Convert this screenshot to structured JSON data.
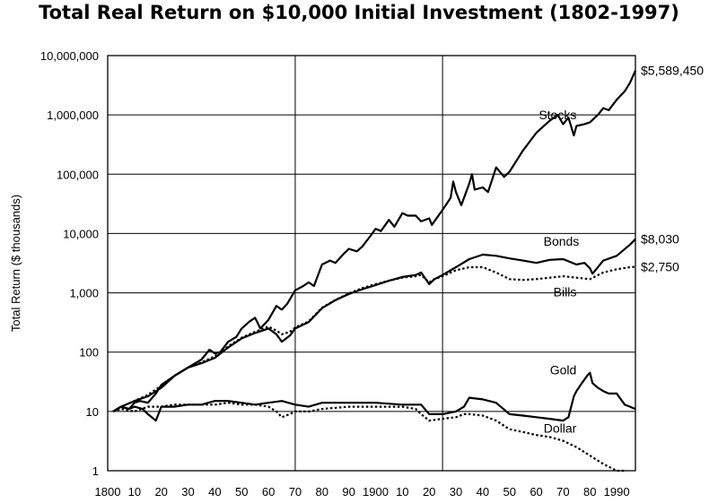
{
  "chart_data": {
    "type": "line",
    "title": "Total Real Return on $10,000 Initial Investment (1802-1997)",
    "ylabel": "Total Return ($ thousands)",
    "yscale": "log",
    "ylim": [
      1,
      10000000
    ],
    "xlim": [
      1800,
      1997
    ],
    "y_ticks": [
      {
        "v": 1,
        "label": "1"
      },
      {
        "v": 10,
        "label": "10"
      },
      {
        "v": 100,
        "label": "100"
      },
      {
        "v": 1000,
        "label": "1,000"
      },
      {
        "v": 10000,
        "label": "10,000"
      },
      {
        "v": 100000,
        "label": "100,000"
      },
      {
        "v": 1000000,
        "label": "1,000,000"
      },
      {
        "v": 10000000,
        "label": "10,000,000"
      }
    ],
    "x_ticks": [
      {
        "v": 1800,
        "label": "1800"
      },
      {
        "v": 1810,
        "label": "10"
      },
      {
        "v": 1820,
        "label": "20"
      },
      {
        "v": 1830,
        "label": "30"
      },
      {
        "v": 1840,
        "label": "40"
      },
      {
        "v": 1850,
        "label": "50"
      },
      {
        "v": 1860,
        "label": "60"
      },
      {
        "v": 1870,
        "label": "70"
      },
      {
        "v": 1880,
        "label": "80"
      },
      {
        "v": 1890,
        "label": "90"
      },
      {
        "v": 1900,
        "label": "1900"
      },
      {
        "v": 1910,
        "label": "10"
      },
      {
        "v": 1920,
        "label": "20"
      },
      {
        "v": 1930,
        "label": "30"
      },
      {
        "v": 1940,
        "label": "40"
      },
      {
        "v": 1950,
        "label": "50"
      },
      {
        "v": 1960,
        "label": "60"
      },
      {
        "v": 1970,
        "label": "70"
      },
      {
        "v": 1980,
        "label": "80"
      },
      {
        "v": 1990,
        "label": "1990"
      }
    ],
    "vgrid": [
      1800,
      1870,
      1925
    ],
    "hgrid": [
      10,
      100,
      1000,
      10000,
      100000,
      1000000,
      10000000
    ],
    "series": [
      {
        "name": "Stocks",
        "style": "solid",
        "end_label": "$5,589,450",
        "label_at": [
          1975,
          1000000
        ],
        "x": [
          1802,
          1805,
          1808,
          1810,
          1812,
          1815,
          1818,
          1820,
          1825,
          1830,
          1835,
          1838,
          1840,
          1842,
          1845,
          1848,
          1850,
          1853,
          1855,
          1857,
          1860,
          1863,
          1865,
          1867,
          1870,
          1873,
          1875,
          1877,
          1880,
          1883,
          1885,
          1888,
          1890,
          1893,
          1895,
          1898,
          1900,
          1902,
          1905,
          1907,
          1910,
          1912,
          1915,
          1917,
          1920,
          1921,
          1925,
          1928,
          1929,
          1930,
          1932,
          1935,
          1936,
          1937,
          1940,
          1942,
          1945,
          1948,
          1950,
          1955,
          1960,
          1965,
          1968,
          1970,
          1972,
          1974,
          1975,
          1978,
          1980,
          1983,
          1985,
          1987,
          1990,
          1993,
          1995,
          1997
        ],
        "y": [
          10,
          12,
          11,
          14,
          15,
          14,
          20,
          28,
          40,
          55,
          75,
          110,
          95,
          100,
          150,
          180,
          250,
          330,
          380,
          250,
          350,
          600,
          520,
          650,
          1100,
          1300,
          1500,
          1300,
          3000,
          3500,
          3200,
          4500,
          5500,
          5000,
          6000,
          9000,
          12000,
          11000,
          17000,
          13000,
          22000,
          20000,
          20000,
          16000,
          18000,
          14000,
          25000,
          40000,
          75000,
          50000,
          30000,
          70000,
          100000,
          55000,
          60000,
          50000,
          130000,
          90000,
          110000,
          250000,
          500000,
          800000,
          1000000,
          700000,
          900000,
          450000,
          650000,
          700000,
          750000,
          1000000,
          1300000,
          1200000,
          1800000,
          2500000,
          3500000,
          5589450
        ]
      },
      {
        "name": "Bonds",
        "style": "solid",
        "end_label": "$8,030",
        "label_at": [
          1976,
          7400
        ],
        "x": [
          1802,
          1805,
          1810,
          1815,
          1820,
          1825,
          1830,
          1835,
          1840,
          1845,
          1850,
          1855,
          1860,
          1863,
          1865,
          1868,
          1870,
          1875,
          1880,
          1885,
          1890,
          1895,
          1900,
          1905,
          1910,
          1915,
          1917,
          1920,
          1922,
          1925,
          1930,
          1935,
          1940,
          1945,
          1950,
          1955,
          1960,
          1965,
          1970,
          1975,
          1978,
          1980,
          1981,
          1985,
          1990,
          1995,
          1997
        ],
        "y": [
          10,
          12,
          15,
          18,
          25,
          40,
          55,
          65,
          80,
          120,
          170,
          210,
          250,
          200,
          150,
          190,
          250,
          320,
          550,
          750,
          950,
          1150,
          1350,
          1600,
          1850,
          2000,
          2200,
          1400,
          1700,
          2000,
          2700,
          3700,
          4400,
          4200,
          3800,
          3500,
          3200,
          3600,
          3700,
          3000,
          3200,
          2600,
          2100,
          3500,
          4200,
          6500,
          8030
        ]
      },
      {
        "name": "Bills",
        "style": "dotted",
        "end_label": "$2,750",
        "label_at": [
          1975,
          1030
        ],
        "x": [
          1802,
          1805,
          1810,
          1815,
          1820,
          1825,
          1830,
          1835,
          1840,
          1845,
          1850,
          1855,
          1860,
          1863,
          1865,
          1868,
          1870,
          1875,
          1880,
          1885,
          1890,
          1895,
          1900,
          1905,
          1910,
          1915,
          1917,
          1920,
          1922,
          1925,
          1930,
          1935,
          1940,
          1945,
          1950,
          1955,
          1960,
          1965,
          1970,
          1975,
          1980,
          1985,
          1990,
          1995,
          1997
        ],
        "y": [
          10,
          12,
          15,
          19,
          27,
          40,
          55,
          67,
          85,
          125,
          175,
          220,
          270,
          230,
          200,
          220,
          260,
          330,
          560,
          760,
          980,
          1200,
          1400,
          1600,
          1800,
          1900,
          2000,
          1500,
          1700,
          1900,
          2400,
          2700,
          2700,
          2200,
          1700,
          1650,
          1700,
          1800,
          1900,
          1800,
          1700,
          2200,
          2500,
          2700,
          2750
        ]
      },
      {
        "name": "Gold",
        "style": "solid",
        "end_label": "",
        "label_at": [
          1975,
          50
        ],
        "x": [
          1802,
          1805,
          1808,
          1810,
          1813,
          1815,
          1818,
          1820,
          1825,
          1830,
          1835,
          1840,
          1845,
          1850,
          1855,
          1860,
          1865,
          1870,
          1875,
          1880,
          1890,
          1900,
          1910,
          1915,
          1917,
          1920,
          1925,
          1930,
          1933,
          1935,
          1940,
          1945,
          1950,
          1955,
          1960,
          1965,
          1970,
          1972,
          1974,
          1975,
          1977,
          1979,
          1980,
          1981,
          1983,
          1985,
          1987,
          1990,
          1993,
          1995,
          1997
        ],
        "y": [
          10,
          12,
          11,
          12,
          11,
          9,
          7,
          12,
          12,
          13,
          13,
          15,
          15,
          14,
          13,
          14,
          15,
          13,
          12,
          14,
          14,
          14,
          13,
          13,
          13,
          9,
          9,
          10,
          12,
          17,
          16,
          14,
          9,
          8.5,
          8,
          7.5,
          7,
          8,
          18,
          22,
          30,
          40,
          45,
          30,
          25,
          22,
          20,
          20,
          13,
          12,
          11
        ]
      },
      {
        "name": "Dollar",
        "style": "dotted",
        "end_label": "",
        "label_at": [
          1975,
          5.2
        ],
        "x": [
          1802,
          1805,
          1810,
          1815,
          1820,
          1825,
          1830,
          1835,
          1840,
          1845,
          1850,
          1855,
          1860,
          1863,
          1865,
          1868,
          1870,
          1875,
          1880,
          1890,
          1900,
          1910,
          1915,
          1917,
          1920,
          1925,
          1930,
          1933,
          1935,
          1940,
          1945,
          1950,
          1955,
          1960,
          1965,
          1970,
          1975,
          1980,
          1985,
          1990,
          1993
        ],
        "y": [
          10,
          11,
          10,
          12,
          12,
          13,
          13,
          13,
          13,
          14,
          13,
          13,
          12,
          10,
          8,
          9,
          10,
          10,
          11,
          12,
          12,
          12,
          11,
          9,
          7,
          7.5,
          8,
          9,
          9,
          8.5,
          7,
          5,
          4.5,
          4,
          3.7,
          3.2,
          2.5,
          1.8,
          1.3,
          1.0,
          0.9
        ]
      }
    ]
  }
}
